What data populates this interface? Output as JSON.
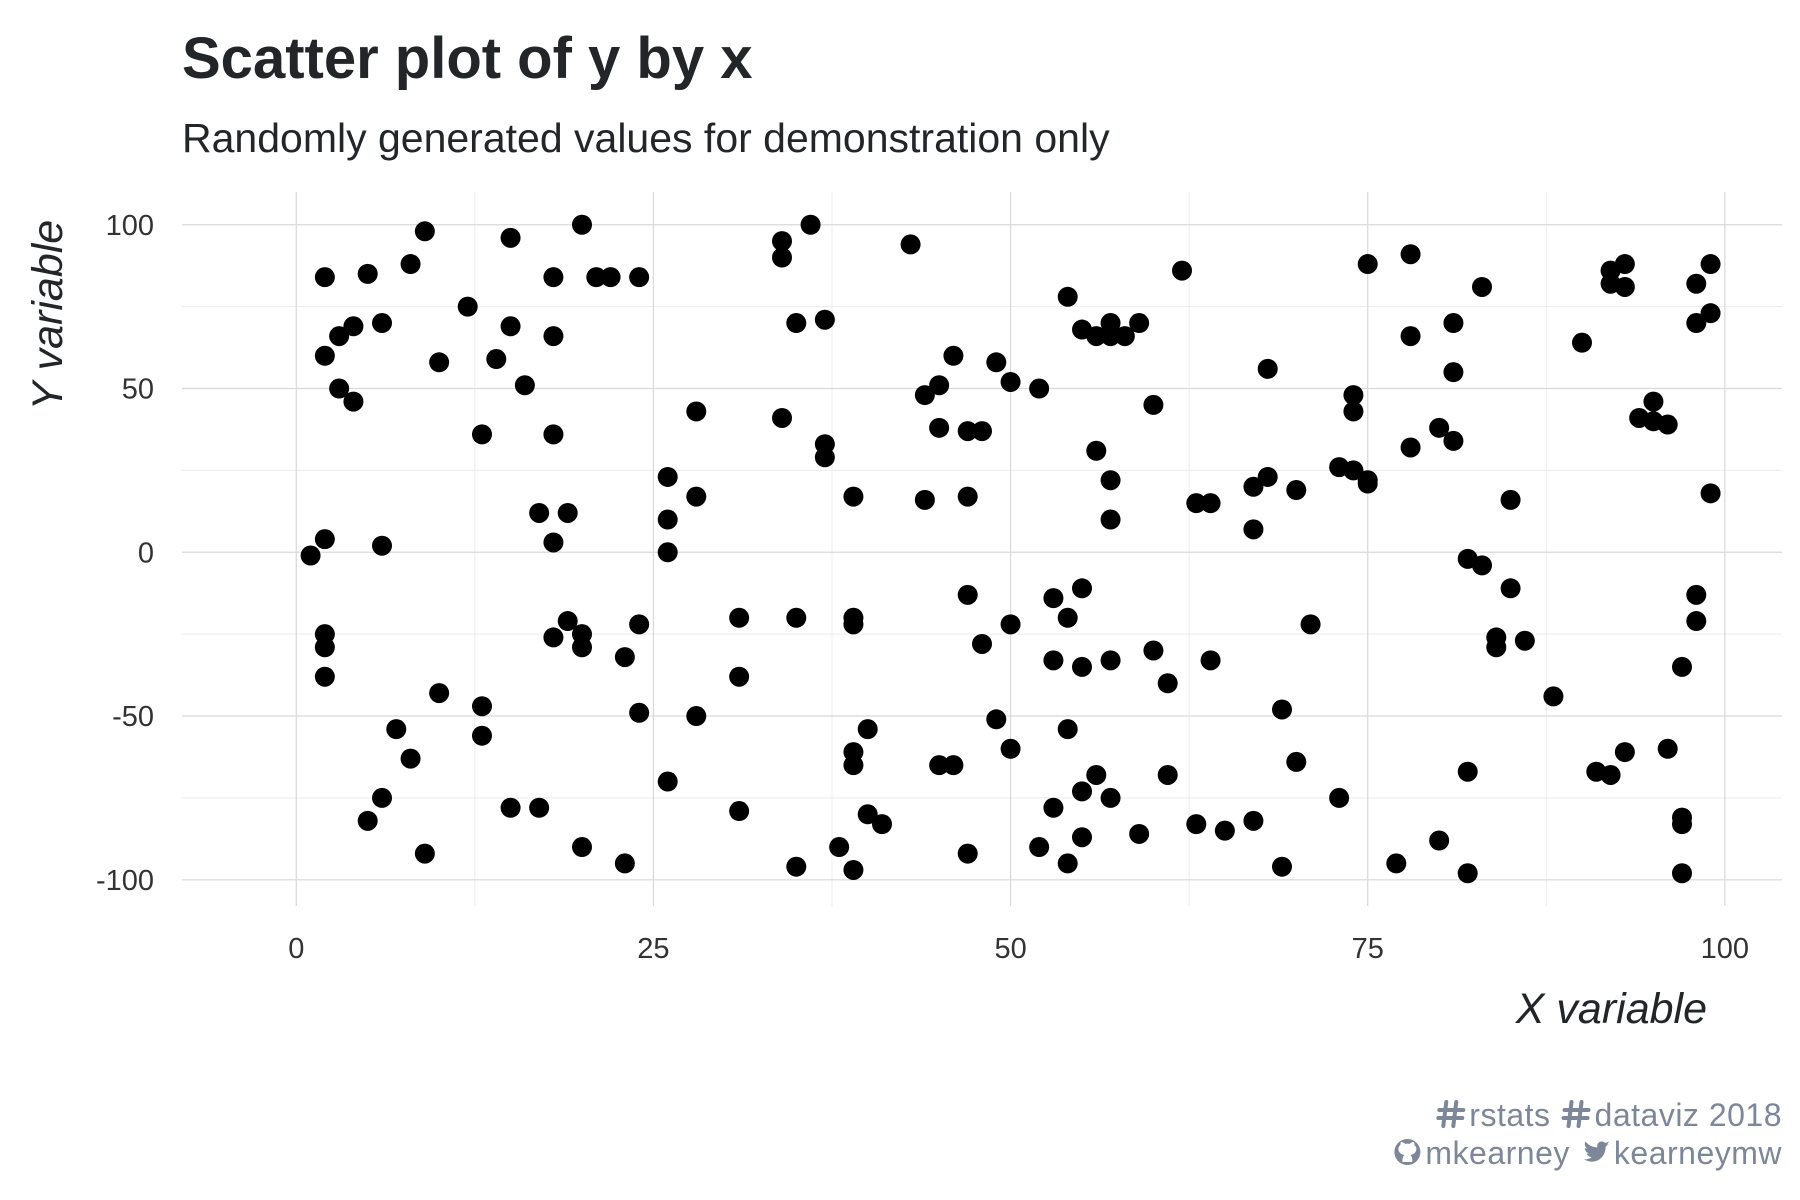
{
  "chart_data": {
    "type": "scatter",
    "title": "Scatter plot of y by x",
    "subtitle": "Randomly generated values for demonstration only",
    "xlabel": "X variable",
    "ylabel": "Y variable",
    "xlim": [
      -8,
      104
    ],
    "ylim": [
      -108,
      110
    ],
    "x_ticks": [
      0,
      25,
      50,
      75,
      100
    ],
    "x_tick_labels": [
      "0",
      "25",
      "50",
      "75",
      "100"
    ],
    "y_ticks": [
      -100,
      -50,
      0,
      50,
      100
    ],
    "y_tick_labels": [
      "-100",
      "-50",
      "0",
      "50",
      "100"
    ],
    "grid": true,
    "legend": "none",
    "point_color": "#000000",
    "caption_lines": [
      {
        "icon1": "hashtag-icon",
        "text1": "rstats",
        "icon2": "hashtag-icon",
        "text2": "dataviz 2018"
      },
      {
        "icon1": "github-icon",
        "text1": "mkearney",
        "icon2": "twitter-icon",
        "text2": "kearneymw"
      }
    ],
    "points": [
      [
        1,
        -1
      ],
      [
        2,
        84
      ],
      [
        2,
        60
      ],
      [
        2,
        4
      ],
      [
        2,
        -25
      ],
      [
        2,
        -29
      ],
      [
        2,
        -38
      ],
      [
        3,
        66
      ],
      [
        3,
        50
      ],
      [
        4,
        69
      ],
      [
        4,
        46
      ],
      [
        5,
        85
      ],
      [
        5,
        -82
      ],
      [
        6,
        70
      ],
      [
        6,
        2
      ],
      [
        6,
        -75
      ],
      [
        7,
        -54
      ],
      [
        8,
        88
      ],
      [
        8,
        -63
      ],
      [
        9,
        98
      ],
      [
        9,
        -92
      ],
      [
        10,
        58
      ],
      [
        10,
        -43
      ],
      [
        12,
        75
      ],
      [
        13,
        36
      ],
      [
        13,
        -47
      ],
      [
        13,
        -56
      ],
      [
        14,
        59
      ],
      [
        15,
        96
      ],
      [
        15,
        69
      ],
      [
        15,
        -78
      ],
      [
        16,
        51
      ],
      [
        17,
        12
      ],
      [
        17,
        -78
      ],
      [
        18,
        84
      ],
      [
        18,
        66
      ],
      [
        18,
        36
      ],
      [
        18,
        3
      ],
      [
        18,
        -26
      ],
      [
        19,
        12
      ],
      [
        19,
        -21
      ],
      [
        20,
        100
      ],
      [
        20,
        -25
      ],
      [
        20,
        -29
      ],
      [
        20,
        -90
      ],
      [
        21,
        84
      ],
      [
        22,
        84
      ],
      [
        23,
        -32
      ],
      [
        23,
        -95
      ],
      [
        24,
        84
      ],
      [
        24,
        -22
      ],
      [
        24,
        -49
      ],
      [
        26,
        23
      ],
      [
        26,
        10
      ],
      [
        26,
        0
      ],
      [
        26,
        -70
      ],
      [
        28,
        43
      ],
      [
        28,
        17
      ],
      [
        28,
        -50
      ],
      [
        31,
        -20
      ],
      [
        31,
        -38
      ],
      [
        31,
        -79
      ],
      [
        34,
        95
      ],
      [
        34,
        90
      ],
      [
        34,
        41
      ],
      [
        35,
        70
      ],
      [
        35,
        -20
      ],
      [
        35,
        -96
      ],
      [
        36,
        100
      ],
      [
        37,
        71
      ],
      [
        37,
        33
      ],
      [
        37,
        29
      ],
      [
        38,
        -90
      ],
      [
        39,
        17
      ],
      [
        39,
        -20
      ],
      [
        39,
        -22
      ],
      [
        39,
        -61
      ],
      [
        39,
        -65
      ],
      [
        39,
        -97
      ],
      [
        40,
        -54
      ],
      [
        40,
        -80
      ],
      [
        41,
        -83
      ],
      [
        43,
        94
      ],
      [
        44,
        48
      ],
      [
        44,
        16
      ],
      [
        45,
        51
      ],
      [
        45,
        38
      ],
      [
        45,
        -65
      ],
      [
        46,
        60
      ],
      [
        46,
        -65
      ],
      [
        47,
        37
      ],
      [
        47,
        17
      ],
      [
        47,
        -13
      ],
      [
        47,
        -92
      ],
      [
        48,
        37
      ],
      [
        48,
        -28
      ],
      [
        49,
        58
      ],
      [
        49,
        -51
      ],
      [
        50,
        52
      ],
      [
        50,
        -22
      ],
      [
        50,
        -60
      ],
      [
        52,
        50
      ],
      [
        52,
        -90
      ],
      [
        53,
        -14
      ],
      [
        53,
        -33
      ],
      [
        53,
        -78
      ],
      [
        54,
        78
      ],
      [
        54,
        -20
      ],
      [
        54,
        -54
      ],
      [
        54,
        -95
      ],
      [
        55,
        68
      ],
      [
        55,
        -11
      ],
      [
        55,
        -35
      ],
      [
        55,
        -73
      ],
      [
        55,
        -87
      ],
      [
        56,
        66
      ],
      [
        56,
        31
      ],
      [
        56,
        -68
      ],
      [
        57,
        70
      ],
      [
        57,
        66
      ],
      [
        57,
        22
      ],
      [
        57,
        10
      ],
      [
        57,
        -33
      ],
      [
        57,
        -75
      ],
      [
        58,
        66
      ],
      [
        59,
        70
      ],
      [
        59,
        -86
      ],
      [
        60,
        45
      ],
      [
        60,
        -30
      ],
      [
        61,
        -40
      ],
      [
        61,
        -68
      ],
      [
        62,
        86
      ],
      [
        63,
        15
      ],
      [
        63,
        -83
      ],
      [
        64,
        15
      ],
      [
        64,
        -33
      ],
      [
        65,
        -85
      ],
      [
        67,
        20
      ],
      [
        67,
        7
      ],
      [
        67,
        -82
      ],
      [
        68,
        56
      ],
      [
        68,
        23
      ],
      [
        69,
        -48
      ],
      [
        69,
        -96
      ],
      [
        70,
        19
      ],
      [
        70,
        -64
      ],
      [
        71,
        -22
      ],
      [
        73,
        26
      ],
      [
        73,
        -75
      ],
      [
        74,
        48
      ],
      [
        74,
        43
      ],
      [
        74,
        25
      ],
      [
        75,
        88
      ],
      [
        75,
        22
      ],
      [
        75,
        21
      ],
      [
        77,
        -95
      ],
      [
        78,
        91
      ],
      [
        78,
        66
      ],
      [
        78,
        32
      ],
      [
        80,
        38
      ],
      [
        80,
        -88
      ],
      [
        81,
        70
      ],
      [
        81,
        55
      ],
      [
        81,
        34
      ],
      [
        82,
        -2
      ],
      [
        82,
        -67
      ],
      [
        82,
        -98
      ],
      [
        83,
        81
      ],
      [
        83,
        -4
      ],
      [
        84,
        -26
      ],
      [
        84,
        -29
      ],
      [
        85,
        16
      ],
      [
        85,
        -11
      ],
      [
        86,
        -27
      ],
      [
        88,
        -44
      ],
      [
        90,
        64
      ],
      [
        91,
        -67
      ],
      [
        92,
        86
      ],
      [
        92,
        82
      ],
      [
        92,
        -68
      ],
      [
        93,
        88
      ],
      [
        93,
        81
      ],
      [
        93,
        -61
      ],
      [
        94,
        41
      ],
      [
        95,
        46
      ],
      [
        95,
        40
      ],
      [
        96,
        39
      ],
      [
        96,
        -60
      ],
      [
        97,
        -35
      ],
      [
        97,
        -81
      ],
      [
        97,
        -83
      ],
      [
        97,
        -98
      ],
      [
        98,
        82
      ],
      [
        98,
        70
      ],
      [
        98,
        -13
      ],
      [
        98,
        -21
      ],
      [
        99,
        88
      ],
      [
        99,
        73
      ],
      [
        99,
        18
      ]
    ]
  }
}
